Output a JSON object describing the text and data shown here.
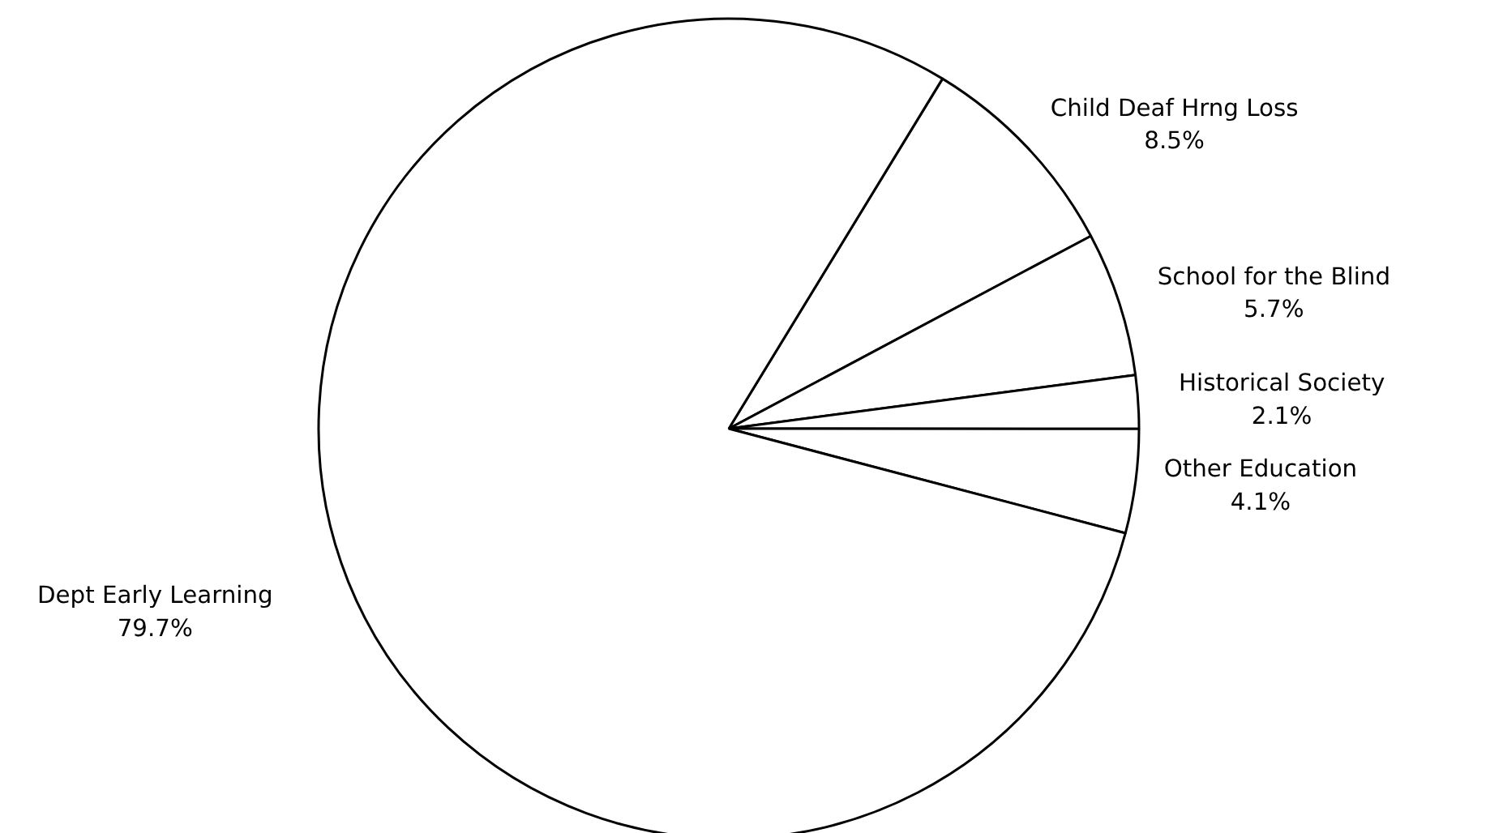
{
  "chart_data": {
    "type": "pie",
    "categories": [
      "Child Deaf Hrng Loss",
      "School for the Blind",
      "Historical Society",
      "Other Education",
      "Dept Early Learning"
    ],
    "values": [
      8.5,
      5.7,
      2.1,
      4.1,
      79.7
    ],
    "colors": [
      "#ffffff",
      "#ffffff",
      "#ffffff",
      "#ffffff",
      "#ffffff"
    ],
    "value_labels": [
      "8.5%",
      "5.7%",
      "2.1%",
      "4.1%",
      "79.7%"
    ],
    "legend": false
  }
}
